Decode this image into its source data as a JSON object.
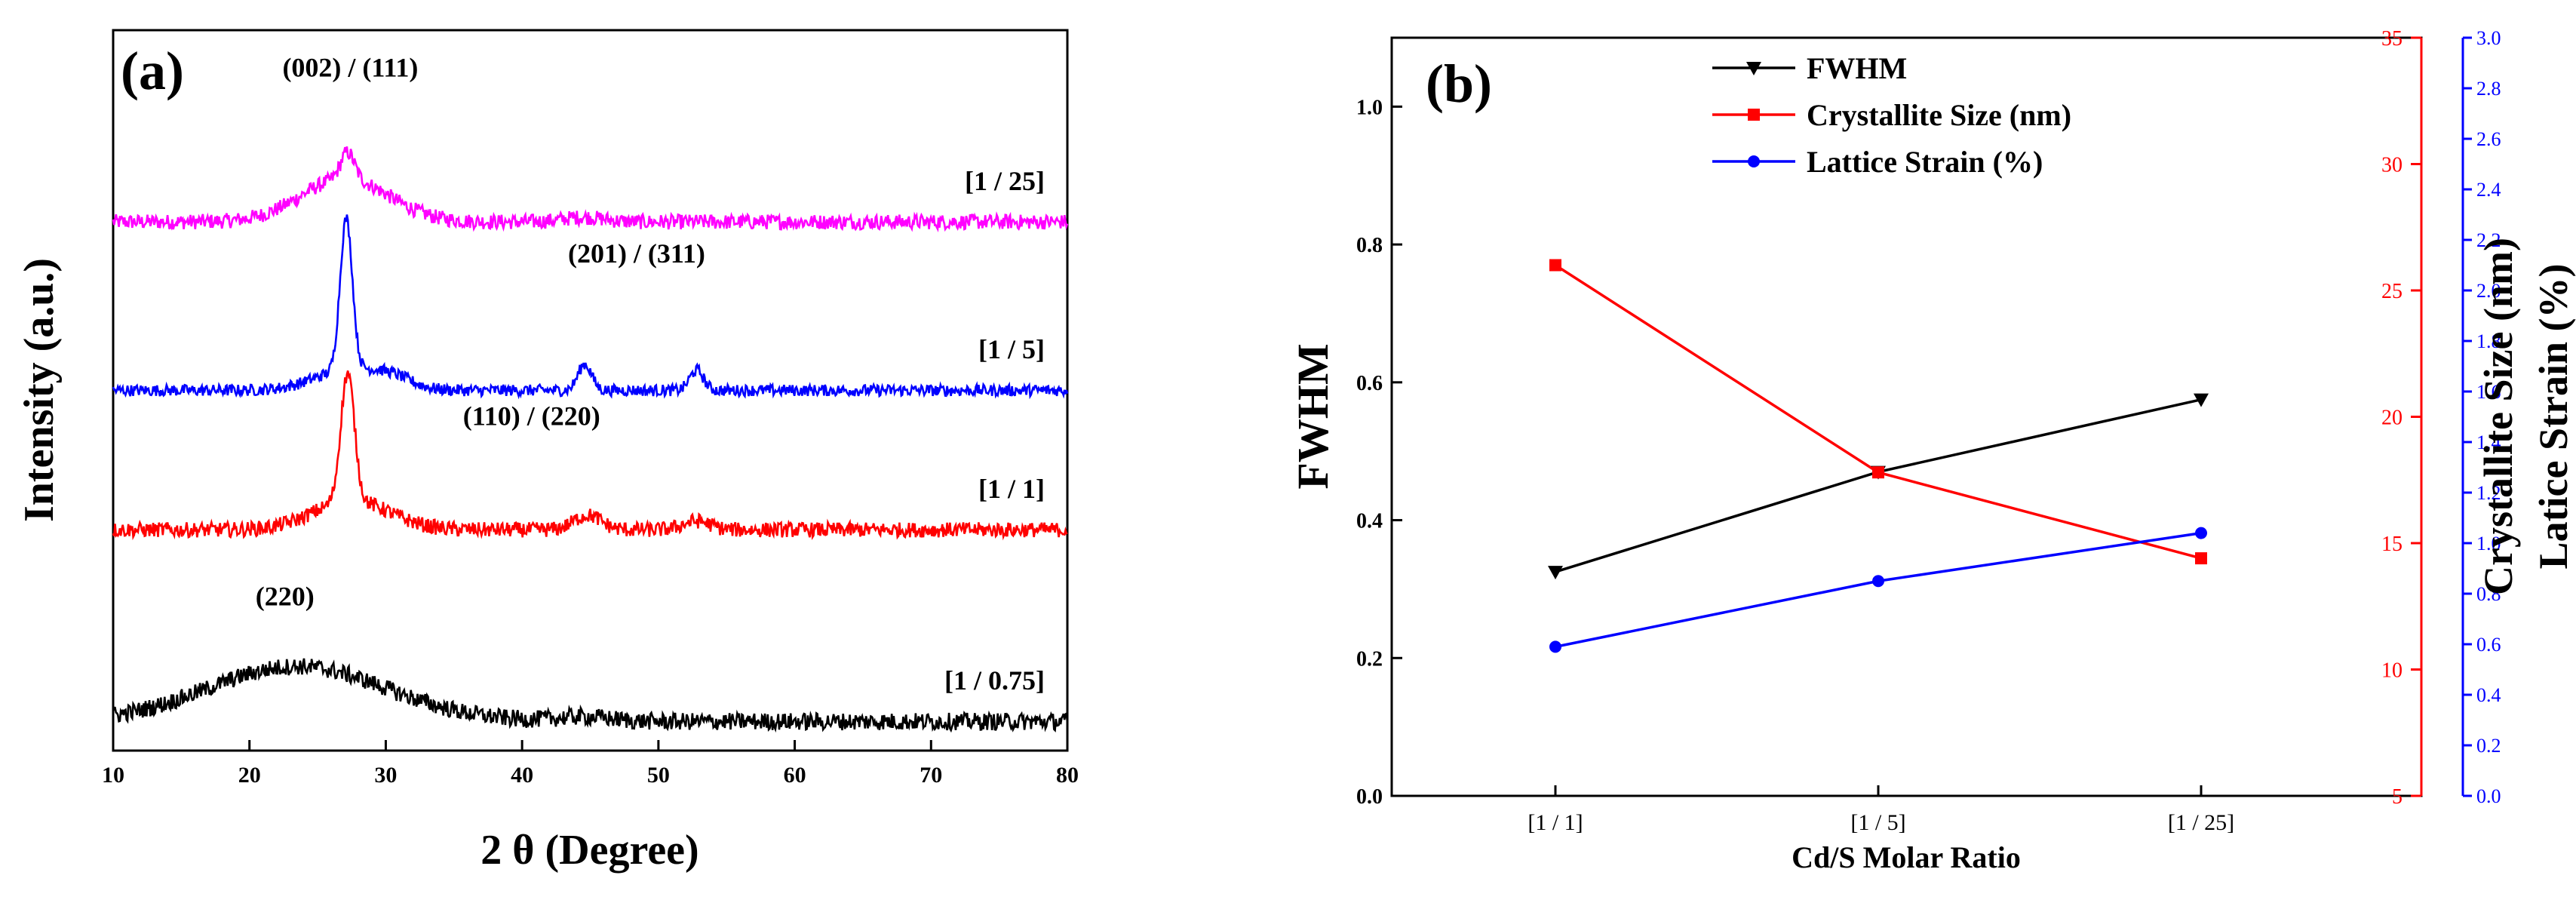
{
  "chart_data": [
    {
      "panel_label": "(a)",
      "type": "line",
      "xlabel": "2 θ (Degree)",
      "ylabel": "Intensity (a.u.)",
      "xlim": [
        10,
        80
      ],
      "xticks": [
        10,
        20,
        30,
        40,
        50,
        60,
        70,
        80
      ],
      "series": [
        {
          "name": "[1 / 25]",
          "color": "#ff00ff",
          "baseline": 8.9,
          "noise": 0.13,
          "peaks": [
            {
              "center": 27,
              "height": 0.75,
              "width": 3.2
            },
            {
              "center": 27.2,
              "height": 0.45,
              "width": 0.5
            },
            {
              "center": 44.5,
              "height": 0.08,
              "width": 1.5
            }
          ]
        },
        {
          "name": "[1 / 5]",
          "color": "#0000ff",
          "baseline": 6.0,
          "noise": 0.1,
          "peaks": [
            {
              "center": 27.1,
              "height": 2.6,
              "width": 0.45
            },
            {
              "center": 27.3,
              "height": 0.35,
              "width": 2.5
            },
            {
              "center": 44.6,
              "height": 0.45,
              "width": 0.5
            },
            {
              "center": 52.8,
              "height": 0.35,
              "width": 0.5
            },
            {
              "center": 30.5,
              "height": 0.15,
              "width": 1.5
            }
          ]
        },
        {
          "name": "[1 / 1]",
          "color": "#ff0000",
          "baseline": 3.6,
          "noise": 0.13,
          "peaks": [
            {
              "center": 27.2,
              "height": 2.2,
              "width": 0.5
            },
            {
              "center": 27.5,
              "height": 0.5,
              "width": 2.8
            },
            {
              "center": 44.8,
              "height": 0.25,
              "width": 1.0
            },
            {
              "center": 52.8,
              "height": 0.15,
              "width": 1.0
            }
          ]
        },
        {
          "name": "[1 / 0.75]",
          "color": "#000000",
          "baseline": 0.3,
          "noise": 0.15,
          "peaks": [
            {
              "center": 23.5,
              "height": 0.95,
              "width": 6.5
            },
            {
              "center": 44.5,
              "height": 0.08,
              "width": 2.0
            }
          ]
        }
      ],
      "annotations": [
        {
          "text": "(002) / (111)",
          "x": 27.4,
          "y": 11.4
        },
        {
          "text": "(201) / (311)",
          "x": 48.4,
          "y": 8.2
        },
        {
          "text": "(110) / (220)",
          "x": 40.7,
          "y": 5.4
        },
        {
          "text": "(220)",
          "x": 22.6,
          "y": 2.3
        }
      ]
    },
    {
      "panel_label": "(b)",
      "type": "line",
      "xlabel": "Cd/S Molar Ratio",
      "categories": [
        "[1 / 1]",
        "[1 / 5]",
        "[1 / 25]"
      ],
      "axes": {
        "left": {
          "label": "FWHM",
          "lim": [
            0,
            1.1
          ],
          "ticks": [
            "0.0",
            "0.2",
            "0.4",
            "0.6",
            "0.8",
            "1.0"
          ],
          "color": "#000000"
        },
        "right1": {
          "label": "Crystallite Size (nm)",
          "lim": [
            5,
            35
          ],
          "ticks": [
            "5",
            "10",
            "15",
            "20",
            "25",
            "30",
            "35"
          ],
          "color": "#ff0000"
        },
        "right2": {
          "label": "Latice Strain (%)",
          "lim": [
            0,
            3.0
          ],
          "ticks": [
            "0.0",
            "0.2",
            "0.4",
            "0.6",
            "0.8",
            "1.0",
            "1.2",
            "1.4",
            "1.6",
            "1.8",
            "2.0",
            "2.2",
            "2.4",
            "2.6",
            "2.8",
            "3.0"
          ],
          "color": "#0000ff"
        }
      },
      "series": [
        {
          "name": "FWHM",
          "axis": "left",
          "color": "#000000",
          "marker": "triangle-down",
          "values": [
            0.325,
            0.47,
            0.575
          ]
        },
        {
          "name": "Crystallite Size (nm)",
          "axis": "right1",
          "color": "#ff0000",
          "marker": "square",
          "values": [
            26.0,
            17.8,
            14.4
          ]
        },
        {
          "name": "Lattice Strain (%)",
          "axis": "right2",
          "color": "#0000ff",
          "marker": "circle",
          "values": [
            0.59,
            0.85,
            1.04
          ]
        }
      ]
    }
  ]
}
